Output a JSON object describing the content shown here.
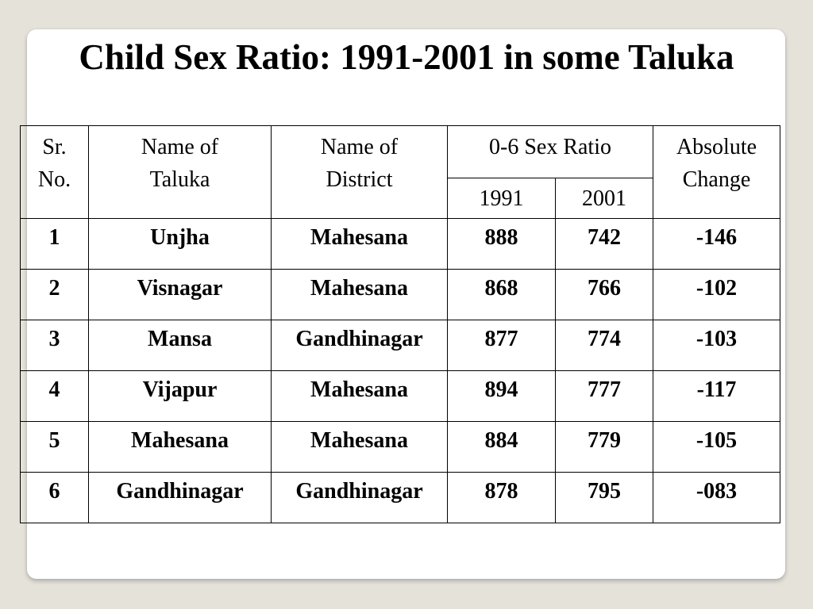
{
  "title": "Child Sex Ratio: 1991-2001 in some Taluka",
  "table": {
    "headers": {
      "sr_no": "Sr. No.",
      "taluka": "Name of Taluka",
      "district": "Name of District",
      "sex_ratio_group": "0-6 Sex Ratio",
      "year_1991": "1991",
      "year_2001": "2001",
      "absolute_change": "Absolute Change"
    },
    "rows": [
      {
        "sr": "1",
        "taluka": "Unjha",
        "district": "Mahesana",
        "r1991": "888",
        "r2001": "742",
        "change": "-146"
      },
      {
        "sr": "2",
        "taluka": "Visnagar",
        "district": "Mahesana",
        "r1991": "868",
        "r2001": "766",
        "change": "-102"
      },
      {
        "sr": "3",
        "taluka": "Mansa",
        "district": "Gandhinagar",
        "r1991": "877",
        "r2001": "774",
        "change": "-103"
      },
      {
        "sr": "4",
        "taluka": "Vijapur",
        "district": "Mahesana",
        "r1991": "894",
        "r2001": "777",
        "change": "-117"
      },
      {
        "sr": "5",
        "taluka": "Mahesana",
        "district": "Mahesana",
        "r1991": "884",
        "r2001": "779",
        "change": "-105"
      },
      {
        "sr": "6",
        "taluka": "Gandhinagar",
        "district": "Gandhinagar",
        "r1991": "878",
        "r2001": "795",
        "change": "-083"
      }
    ]
  }
}
